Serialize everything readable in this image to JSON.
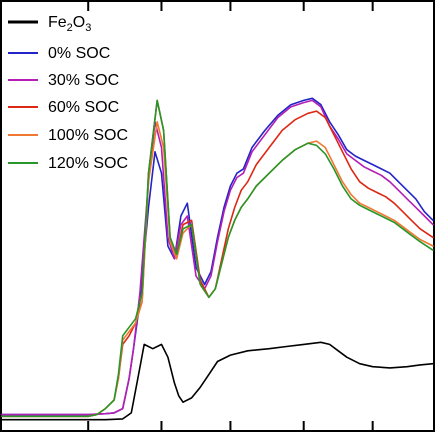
{
  "chart_data": {
    "type": "line",
    "title": "",
    "xlabel": "",
    "ylabel": "",
    "xlim": [
      0,
      100
    ],
    "ylim": [
      0,
      1
    ],
    "grid": false,
    "legend_position": "top-left",
    "x_ticks": [
      20,
      37,
      53,
      70,
      86
    ],
    "series": [
      {
        "name": "Fe2O3",
        "name_main": "Fe",
        "name_sub1": "2",
        "name_mid": "O",
        "name_sub2": "3",
        "color": "#000000",
        "x": [
          0,
          24,
          28,
          30,
          31.5,
          33,
          35,
          37,
          38.5,
          40,
          41,
          42,
          44,
          46,
          48,
          50,
          53,
          57,
          62,
          66,
          70,
          74,
          76,
          78,
          80,
          83,
          86,
          90,
          94,
          97,
          100
        ],
        "y": [
          0.024,
          0.024,
          0.026,
          0.04,
          0.12,
          0.2,
          0.19,
          0.2,
          0.17,
          0.11,
          0.08,
          0.065,
          0.075,
          0.1,
          0.13,
          0.16,
          0.175,
          0.185,
          0.19,
          0.195,
          0.2,
          0.205,
          0.2,
          0.185,
          0.17,
          0.155,
          0.148,
          0.145,
          0.148,
          0.152,
          0.155
        ]
      },
      {
        "name": "0% SOC",
        "color": "#2323c8",
        "x": [
          0,
          20,
          24,
          26,
          28,
          29.5,
          30.5,
          32,
          34,
          35.5,
          37,
          38.5,
          40,
          41.5,
          43,
          45,
          47,
          48.5,
          50,
          51.5,
          53,
          54.5,
          56,
          58,
          61,
          64,
          67,
          70,
          72,
          74,
          76,
          78,
          80,
          82,
          84,
          86,
          88,
          90,
          92,
          94,
          96,
          98,
          100
        ],
        "y": [
          0.036,
          0.036,
          0.038,
          0.04,
          0.05,
          0.12,
          0.19,
          0.3,
          0.52,
          0.65,
          0.6,
          0.43,
          0.4,
          0.5,
          0.53,
          0.38,
          0.34,
          0.37,
          0.45,
          0.52,
          0.57,
          0.6,
          0.61,
          0.66,
          0.7,
          0.735,
          0.76,
          0.77,
          0.775,
          0.76,
          0.72,
          0.69,
          0.655,
          0.64,
          0.63,
          0.62,
          0.61,
          0.6,
          0.58,
          0.56,
          0.54,
          0.51,
          0.49
        ]
      },
      {
        "name": "30% SOC",
        "color": "#b41eb4",
        "x": [
          0,
          20,
          24,
          26,
          28,
          29.5,
          30.5,
          32,
          34,
          35.5,
          37,
          38.5,
          40,
          41.5,
          43,
          45,
          47,
          48.5,
          50,
          51.5,
          53,
          54.5,
          56,
          58,
          61,
          64,
          67,
          70,
          72,
          74,
          76,
          78,
          80,
          82,
          84,
          86,
          88,
          90,
          92,
          94,
          96,
          98,
          100
        ],
        "y": [
          0.036,
          0.036,
          0.038,
          0.04,
          0.05,
          0.12,
          0.19,
          0.32,
          0.58,
          0.72,
          0.66,
          0.45,
          0.4,
          0.48,
          0.5,
          0.36,
          0.33,
          0.36,
          0.44,
          0.51,
          0.56,
          0.59,
          0.6,
          0.65,
          0.69,
          0.73,
          0.755,
          0.765,
          0.77,
          0.755,
          0.71,
          0.68,
          0.645,
          0.63,
          0.615,
          0.605,
          0.595,
          0.58,
          0.56,
          0.54,
          0.52,
          0.5,
          0.48
        ]
      },
      {
        "name": "60% SOC",
        "color": "#dc2814",
        "x": [
          0,
          20,
          22,
          24,
          26,
          27,
          28,
          29.5,
          31,
          32.5,
          34,
          36,
          37.5,
          39,
          40.5,
          42,
          44,
          46,
          48,
          49.5,
          51,
          52.5,
          54,
          55.5,
          57,
          59,
          62,
          65,
          68,
          71,
          73,
          75,
          77,
          79,
          81,
          83,
          85,
          87,
          89,
          91,
          93,
          95,
          97,
          100
        ],
        "y": [
          0.032,
          0.032,
          0.036,
          0.05,
          0.07,
          0.12,
          0.2,
          0.22,
          0.25,
          0.3,
          0.6,
          0.77,
          0.7,
          0.45,
          0.41,
          0.48,
          0.49,
          0.35,
          0.31,
          0.33,
          0.4,
          0.47,
          0.52,
          0.56,
          0.58,
          0.62,
          0.66,
          0.7,
          0.725,
          0.74,
          0.745,
          0.73,
          0.69,
          0.65,
          0.61,
          0.58,
          0.565,
          0.555,
          0.545,
          0.53,
          0.51,
          0.49,
          0.47,
          0.45
        ]
      },
      {
        "name": "100% SOC",
        "color": "#f07832",
        "x": [
          0,
          20,
          22,
          24,
          26,
          27,
          28,
          29.5,
          31,
          32.5,
          34,
          36,
          37.5,
          39,
          40.5,
          42,
          44,
          46,
          48,
          49.5,
          51,
          52.5,
          54,
          55.5,
          57,
          59,
          62,
          65,
          68,
          71,
          73,
          75,
          77,
          79,
          81,
          83,
          85,
          87,
          89,
          91,
          93,
          95,
          97,
          100
        ],
        "y": [
          0.032,
          0.032,
          0.036,
          0.05,
          0.07,
          0.12,
          0.21,
          0.23,
          0.25,
          0.3,
          0.58,
          0.72,
          0.66,
          0.44,
          0.4,
          0.46,
          0.48,
          0.34,
          0.31,
          0.33,
          0.39,
          0.45,
          0.49,
          0.52,
          0.54,
          0.57,
          0.6,
          0.63,
          0.655,
          0.67,
          0.675,
          0.66,
          0.62,
          0.58,
          0.55,
          0.53,
          0.52,
          0.51,
          0.5,
          0.49,
          0.475,
          0.46,
          0.445,
          0.43
        ]
      },
      {
        "name": "120% SOC",
        "color": "#289628",
        "x": [
          0,
          20,
          22,
          24,
          26,
          27,
          28,
          29.5,
          31,
          32.5,
          34,
          36,
          37.5,
          39,
          40.5,
          42,
          44,
          46,
          48,
          49.5,
          51,
          52.5,
          54,
          55.5,
          57,
          59,
          62,
          65,
          68,
          71,
          73,
          75,
          77,
          79,
          81,
          83,
          85,
          87,
          89,
          91,
          93,
          95,
          97,
          100
        ],
        "y": [
          0.032,
          0.032,
          0.036,
          0.05,
          0.07,
          0.13,
          0.22,
          0.24,
          0.26,
          0.32,
          0.6,
          0.77,
          0.7,
          0.45,
          0.41,
          0.47,
          0.48,
          0.34,
          0.31,
          0.33,
          0.39,
          0.45,
          0.49,
          0.52,
          0.54,
          0.57,
          0.6,
          0.63,
          0.655,
          0.67,
          0.665,
          0.645,
          0.61,
          0.57,
          0.54,
          0.525,
          0.515,
          0.505,
          0.495,
          0.485,
          0.47,
          0.455,
          0.44,
          0.42
        ]
      }
    ]
  }
}
